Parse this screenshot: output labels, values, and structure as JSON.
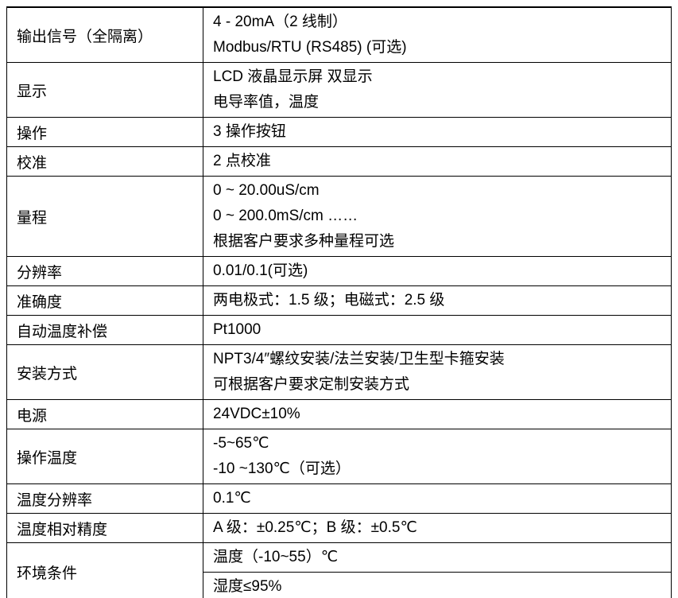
{
  "document": {
    "kind": "product-specification-table",
    "rows": [
      {
        "label": "输出信号（全隔离）",
        "lines": [
          "4 - 20mA（2 线制）",
          "Modbus/RTU (RS485) (可选)"
        ],
        "split": false
      },
      {
        "label": "显示",
        "lines": [
          "LCD 液晶显示屏 双显示",
          "电导率值，温度"
        ],
        "split": false
      },
      {
        "label": "操作",
        "lines": [
          "3 操作按钮"
        ],
        "split": false
      },
      {
        "label": "校准",
        "lines": [
          "2 点校准"
        ],
        "split": false
      },
      {
        "label": "量程",
        "lines": [
          "0 ~ 20.00uS/cm",
          "0 ~ 200.0mS/cm ……",
          "根据客户要求多种量程可选"
        ],
        "split": false
      },
      {
        "label": "分辨率",
        "lines": [
          "0.01/0.1(可选)"
        ],
        "split": false
      },
      {
        "label": "准确度",
        "lines": [
          "两电极式：1.5 级；电磁式：2.5 级"
        ],
        "split": false
      },
      {
        "label": "自动温度补偿",
        "lines": [
          "Pt1000"
        ],
        "split": false
      },
      {
        "label": "安装方式",
        "lines": [
          "NPT3/4″螺纹安装/法兰安装/卫生型卡箍安装",
          "可根据客户要求定制安装方式"
        ],
        "split": false
      },
      {
        "label": "电源",
        "lines": [
          "24VDC±10%"
        ],
        "split": false
      },
      {
        "label": "操作温度",
        "lines": [
          "-5~65℃",
          "-10 ~130℃（可选）"
        ],
        "split": false
      },
      {
        "label": "温度分辨率",
        "lines": [
          "0.1℃"
        ],
        "split": false
      },
      {
        "label": "温度相对精度",
        "lines": [
          "A 级：±0.25℃；B 级：±0.5℃"
        ],
        "split": false
      },
      {
        "label": "环境条件",
        "lines": [
          "温度（-10~55）℃",
          "湿度≤95%"
        ],
        "split": true
      }
    ]
  },
  "colors": {
    "border": "#000000",
    "text": "#000000",
    "background": "#ffffff"
  }
}
